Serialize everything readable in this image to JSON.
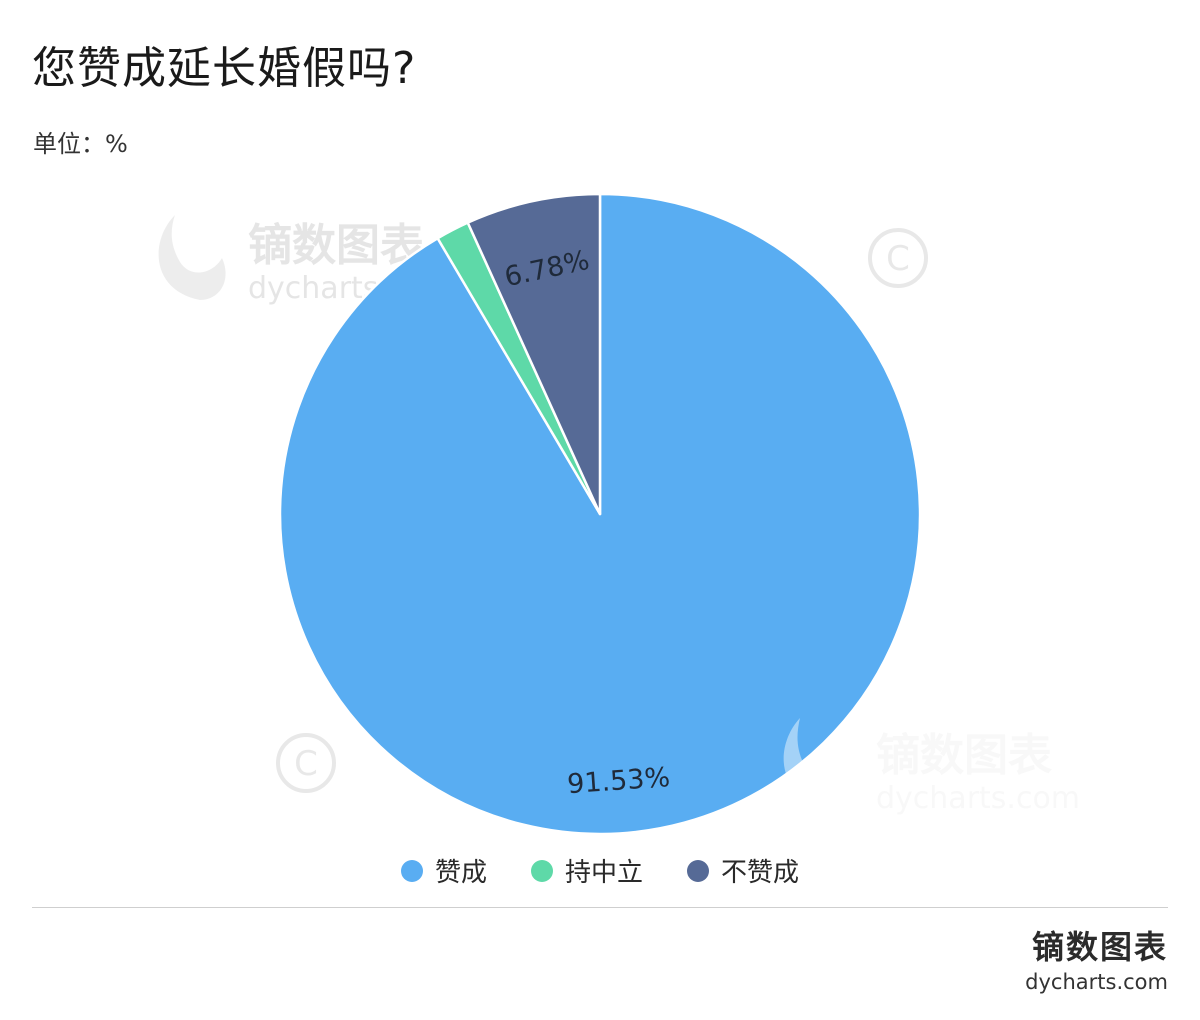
{
  "header": {
    "title": "您赞成延长婚假吗?",
    "unit": "单位：%"
  },
  "chart_data": {
    "type": "pie",
    "categories": [
      "赞成",
      "持中立",
      "不赞成"
    ],
    "values": [
      91.53,
      1.69,
      6.78
    ],
    "data_labels": [
      "91.53%",
      "",
      "6.78%"
    ],
    "colors": [
      "#59adf2",
      "#5ed9a8",
      "#566a96"
    ],
    "legend_position": "bottom"
  },
  "watermark": {
    "name": "镝数图表",
    "url": "dycharts.com",
    "copyright_icon": "copyright-icon"
  },
  "footer": {
    "brand_name": "镝数图表",
    "brand_url": "dycharts.com"
  }
}
